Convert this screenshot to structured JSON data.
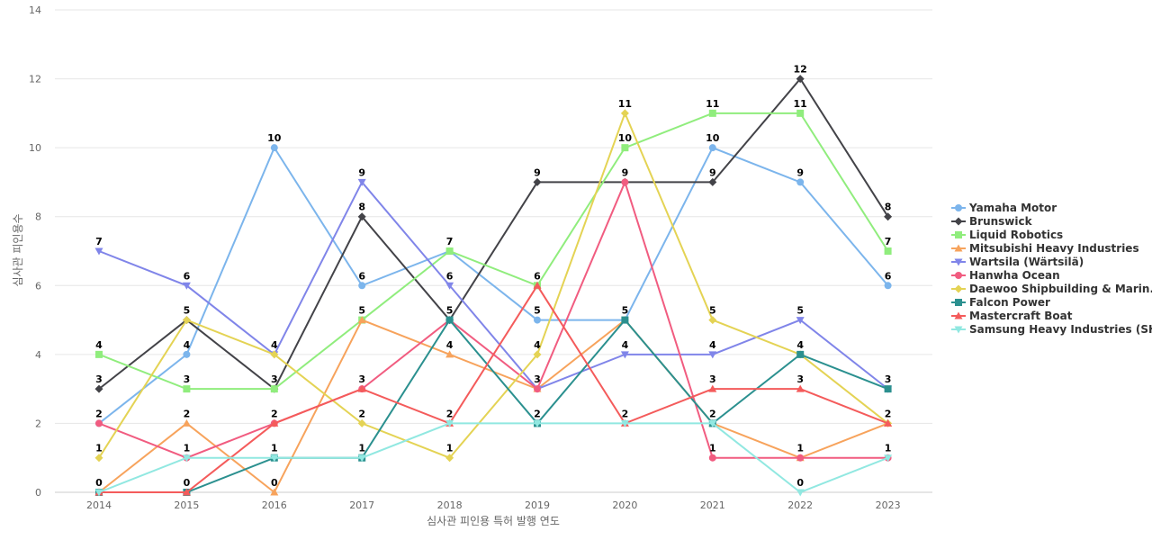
{
  "chart_data": {
    "type": "line",
    "xlabel": "심사관 피인용 특허 발행 연도",
    "ylabel": "심사관 피인용수",
    "ylim": [
      0,
      14
    ],
    "yticks": [
      0,
      2,
      4,
      6,
      8,
      10,
      12,
      14
    ],
    "grid": true,
    "legend_position": "right",
    "categories": [
      "2014",
      "2015",
      "2016",
      "2017",
      "2018",
      "2019",
      "2020",
      "2021",
      "2022",
      "2023"
    ],
    "series": [
      {
        "name": "Yamaha Motor",
        "color": "#7cb5ec",
        "marker": "circle",
        "values": [
          2,
          4,
          10,
          6,
          7,
          5,
          5,
          10,
          9,
          6
        ]
      },
      {
        "name": "Brunswick",
        "color": "#434348",
        "marker": "diamond",
        "values": [
          3,
          5,
          3,
          8,
          5,
          9,
          9,
          9,
          12,
          8
        ]
      },
      {
        "name": "Liquid Robotics",
        "color": "#90ed7d",
        "marker": "square",
        "values": [
          4,
          3,
          3,
          5,
          7,
          6,
          10,
          11,
          11,
          7
        ]
      },
      {
        "name": "Mitsubishi Heavy Industries",
        "color": "#f7a35c",
        "marker": "triangle",
        "values": [
          0,
          2,
          0,
          5,
          4,
          3,
          5,
          2,
          1,
          2
        ]
      },
      {
        "name": "Wartsila (Wärtsilä)",
        "color": "#8085e9",
        "marker": "triangle-down",
        "values": [
          7,
          6,
          4,
          9,
          6,
          3,
          4,
          4,
          5,
          3
        ]
      },
      {
        "name": "Hanwha Ocean",
        "color": "#f15c80",
        "marker": "circle",
        "values": [
          2,
          1,
          2,
          3,
          5,
          3,
          9,
          1,
          1,
          1
        ]
      },
      {
        "name": "Daewoo Shipbuilding & Marin...",
        "color": "#e4d354",
        "marker": "diamond",
        "values": [
          1,
          5,
          4,
          2,
          1,
          4,
          11,
          5,
          4,
          2
        ]
      },
      {
        "name": "Falcon Power",
        "color": "#2b908f",
        "marker": "square",
        "values": [
          0,
          0,
          1,
          1,
          5,
          2,
          5,
          2,
          4,
          3
        ]
      },
      {
        "name": "Mastercraft Boat",
        "color": "#f45b5b",
        "marker": "triangle",
        "values": [
          0,
          0,
          2,
          3,
          2,
          6,
          2,
          3,
          3,
          2
        ]
      },
      {
        "name": "Samsung Heavy Industries (SHI)",
        "color": "#91e8e1",
        "marker": "triangle-down",
        "values": [
          0,
          1,
          1,
          1,
          2,
          2,
          2,
          2,
          0,
          1
        ]
      }
    ]
  }
}
